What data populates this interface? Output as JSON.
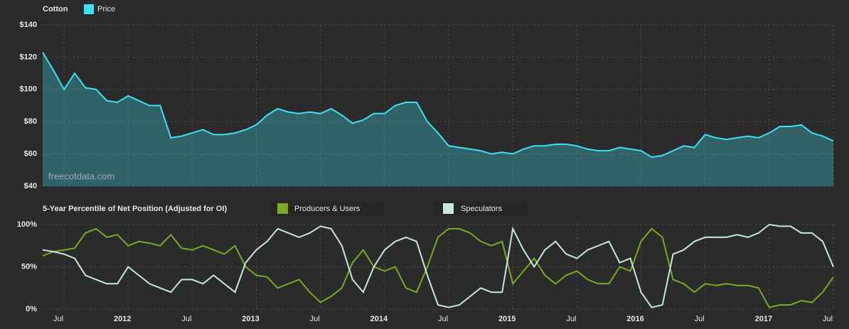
{
  "chart_data": [
    {
      "type": "area",
      "title": "Cotton",
      "annotation": "freecotdata.com",
      "x": [
        "2011-05",
        "2011-06",
        "2011-07",
        "2011-08",
        "2011-09",
        "2011-10",
        "2011-11",
        "2011-12",
        "2012-01",
        "2012-02",
        "2012-03",
        "2012-04",
        "2012-05",
        "2012-06",
        "2012-07",
        "2012-08",
        "2012-09",
        "2012-10",
        "2012-11",
        "2012-12",
        "2013-01",
        "2013-02",
        "2013-03",
        "2013-04",
        "2013-05",
        "2013-06",
        "2013-07",
        "2013-08",
        "2013-09",
        "2013-10",
        "2013-11",
        "2013-12",
        "2014-01",
        "2014-02",
        "2014-03",
        "2014-04",
        "2014-05",
        "2014-06",
        "2014-07",
        "2014-08",
        "2014-09",
        "2014-10",
        "2014-11",
        "2014-12",
        "2015-01",
        "2015-02",
        "2015-03",
        "2015-04",
        "2015-05",
        "2015-06",
        "2015-07",
        "2015-08",
        "2015-09",
        "2015-10",
        "2015-11",
        "2015-12",
        "2016-01",
        "2016-02",
        "2016-03",
        "2016-04",
        "2016-05",
        "2016-06",
        "2016-07",
        "2016-08",
        "2016-09",
        "2016-10",
        "2016-11",
        "2016-12",
        "2017-01",
        "2017-02",
        "2017-03",
        "2017-04",
        "2017-05",
        "2017-06",
        "2017-07"
      ],
      "xlim": [
        "2011-05",
        "2017-07"
      ],
      "series": [
        {
          "name": "Price",
          "color": "#3ee0f5",
          "values": [
            123,
            112,
            100,
            110,
            101,
            100,
            93,
            92,
            96,
            93,
            90,
            90,
            70,
            71,
            73,
            75,
            72,
            72,
            73,
            75,
            78,
            84,
            88,
            86,
            85,
            86,
            85,
            88,
            84,
            79,
            81,
            85,
            85,
            90,
            92,
            92,
            80,
            73,
            65,
            64,
            63,
            62,
            60,
            61,
            60,
            63,
            65,
            65,
            66,
            66,
            65,
            63,
            62,
            62,
            64,
            63,
            62,
            58,
            59,
            62,
            65,
            64,
            72,
            70,
            69,
            70,
            71,
            70,
            73,
            77,
            77,
            78,
            73,
            71,
            68
          ]
        }
      ],
      "ylim": [
        40,
        140
      ],
      "yticks": [
        {
          "value": 40,
          "label": "$40"
        },
        {
          "value": 60,
          "label": "$60"
        },
        {
          "value": 80,
          "label": "$80"
        },
        {
          "value": 100,
          "label": "$100"
        },
        {
          "value": 120,
          "label": "$120"
        },
        {
          "value": 140,
          "label": "$140"
        }
      ],
      "grid": true
    },
    {
      "type": "line",
      "title": "5-Year Percentile of Net Position (Adjusted for OI)",
      "x": [
        "2011-05",
        "2011-06",
        "2011-07",
        "2011-08",
        "2011-09",
        "2011-10",
        "2011-11",
        "2011-12",
        "2012-01",
        "2012-02",
        "2012-03",
        "2012-04",
        "2012-05",
        "2012-06",
        "2012-07",
        "2012-08",
        "2012-09",
        "2012-10",
        "2012-11",
        "2012-12",
        "2013-01",
        "2013-02",
        "2013-03",
        "2013-04",
        "2013-05",
        "2013-06",
        "2013-07",
        "2013-08",
        "2013-09",
        "2013-10",
        "2013-11",
        "2013-12",
        "2014-01",
        "2014-02",
        "2014-03",
        "2014-04",
        "2014-05",
        "2014-06",
        "2014-07",
        "2014-08",
        "2014-09",
        "2014-10",
        "2014-11",
        "2014-12",
        "2015-01",
        "2015-02",
        "2015-03",
        "2015-04",
        "2015-05",
        "2015-06",
        "2015-07",
        "2015-08",
        "2015-09",
        "2015-10",
        "2015-11",
        "2015-12",
        "2016-01",
        "2016-02",
        "2016-03",
        "2016-04",
        "2016-05",
        "2016-06",
        "2016-07",
        "2016-08",
        "2016-09",
        "2016-10",
        "2016-11",
        "2016-12",
        "2017-01",
        "2017-02",
        "2017-03",
        "2017-04",
        "2017-05",
        "2017-06",
        "2017-07"
      ],
      "xlim": [
        "2011-05",
        "2017-07"
      ],
      "xticks": [
        {
          "value": "2011-07",
          "label": "Jul"
        },
        {
          "value": "2012-01",
          "label": "2012"
        },
        {
          "value": "2012-07",
          "label": "Jul"
        },
        {
          "value": "2013-01",
          "label": "2013"
        },
        {
          "value": "2013-07",
          "label": "Jul"
        },
        {
          "value": "2014-01",
          "label": "2014"
        },
        {
          "value": "2014-07",
          "label": "Jul"
        },
        {
          "value": "2015-01",
          "label": "2015"
        },
        {
          "value": "2015-07",
          "label": "Jul"
        },
        {
          "value": "2016-01",
          "label": "2016"
        },
        {
          "value": "2016-07",
          "label": "Jul"
        },
        {
          "value": "2017-01",
          "label": "2017"
        },
        {
          "value": "2017-07",
          "label": "Jul"
        }
      ],
      "series": [
        {
          "name": "Producers & Users",
          "color": "#7aaa22",
          "values": [
            63,
            68,
            70,
            72,
            90,
            95,
            85,
            88,
            75,
            80,
            78,
            75,
            88,
            72,
            70,
            75,
            70,
            65,
            75,
            50,
            40,
            38,
            25,
            30,
            35,
            20,
            8,
            15,
            25,
            55,
            70,
            50,
            45,
            50,
            25,
            20,
            50,
            85,
            95,
            95,
            90,
            80,
            75,
            80,
            30,
            45,
            60,
            40,
            30,
            40,
            45,
            35,
            30,
            30,
            50,
            45,
            80,
            95,
            85,
            35,
            30,
            20,
            30,
            28,
            30,
            28,
            28,
            25,
            2,
            5,
            5,
            10,
            8,
            20,
            38
          ]
        },
        {
          "name": "Speculators",
          "color": "#c8e6dc",
          "values": [
            70,
            68,
            65,
            60,
            40,
            35,
            30,
            30,
            50,
            40,
            30,
            25,
            20,
            35,
            35,
            30,
            40,
            30,
            20,
            55,
            70,
            80,
            95,
            90,
            85,
            90,
            98,
            95,
            75,
            35,
            20,
            50,
            70,
            80,
            85,
            80,
            40,
            5,
            2,
            5,
            15,
            25,
            20,
            20,
            95,
            70,
            50,
            70,
            80,
            65,
            60,
            70,
            75,
            80,
            55,
            60,
            20,
            2,
            5,
            65,
            70,
            80,
            85,
            85,
            85,
            88,
            85,
            90,
            100,
            98,
            98,
            90,
            90,
            80,
            50
          ]
        }
      ],
      "ylim": [
        0,
        100
      ],
      "yticks": [
        {
          "value": 0,
          "label": "0%"
        },
        {
          "value": 50,
          "label": "50%"
        },
        {
          "value": 100,
          "label": "100%"
        }
      ],
      "grid": true
    }
  ]
}
